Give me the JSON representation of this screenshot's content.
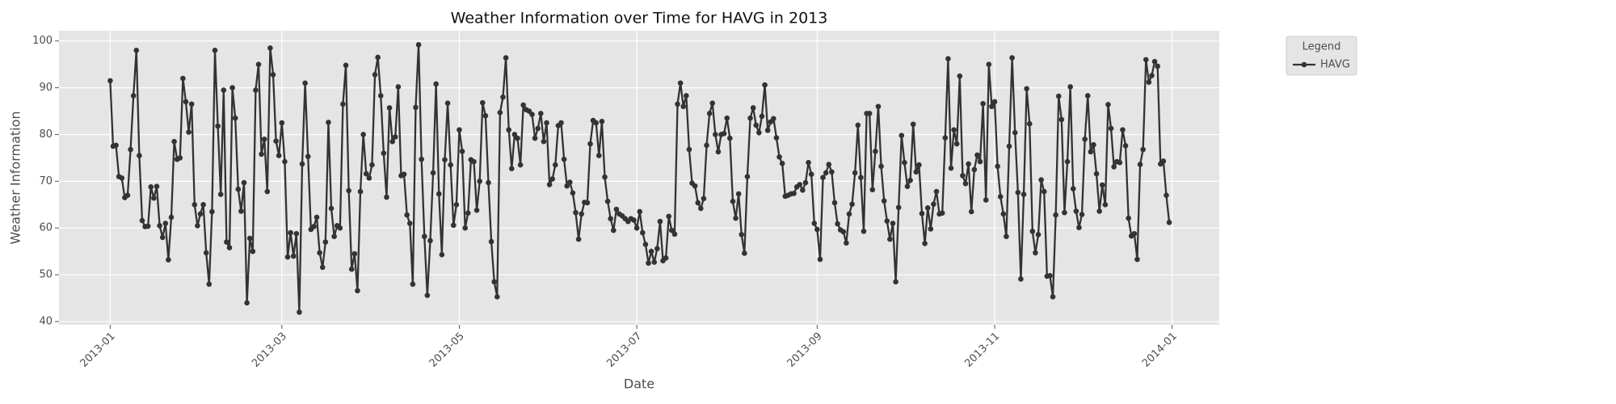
{
  "chart_data": {
    "type": "line",
    "title": "Weather Information over Time for HAVG in 2013",
    "xlabel": "Date",
    "ylabel": "Weather Information",
    "series": [
      {
        "name": "HAVG",
        "color": "#333333",
        "values": [
          91.5,
          77.5,
          77.7,
          71,
          70.7,
          66.5,
          67,
          76.8,
          88.3,
          98,
          75.5,
          61.6,
          60.3,
          60.4,
          68.8,
          66.4,
          68.9,
          60.5,
          58,
          61,
          53.2,
          62.3,
          78.5,
          74.7,
          75,
          92,
          87,
          80.5,
          86.5,
          65,
          60.5,
          63,
          65,
          54.7,
          48,
          63.5,
          98,
          81.8,
          67.2,
          89.5,
          57,
          55.8,
          90,
          83.5,
          68.3,
          63.6,
          69.7,
          44,
          57.8,
          55,
          89.5,
          95,
          75.8,
          79,
          67.8,
          98.5,
          92.8,
          78.6,
          75.5,
          82.5,
          74.2,
          53.8,
          59,
          54,
          58.8,
          42,
          73.7,
          91,
          75.3,
          59.7,
          60.3,
          62.3,
          54.7,
          51.6,
          57,
          82.6,
          64.2,
          58.2,
          60.5,
          60,
          86.5,
          94.8,
          68,
          51.2,
          54.5,
          46.6,
          67.8,
          80,
          71.6,
          70.7,
          73.5,
          92.8,
          96.5,
          88.3,
          76,
          66.6,
          85.7,
          78.5,
          79.5,
          90.2,
          71.2,
          71.5,
          62.8,
          61,
          48,
          85.8,
          99.2,
          74.7,
          58.2,
          45.6,
          57.3,
          71.8,
          90.8,
          67.3,
          54.3,
          74.6,
          86.7,
          73.5,
          60.6,
          65,
          81,
          76.4,
          60,
          63.2,
          74.6,
          74.2,
          63.8,
          70,
          86.8,
          84,
          69.7,
          57.1,
          48.5,
          45.3,
          84.7,
          88,
          96.4,
          81,
          72.7,
          80,
          79.2,
          73.5,
          86.3,
          85.3,
          85,
          84.3,
          79.2,
          81.3,
          84.5,
          78.5,
          82.5,
          69.3,
          70.5,
          73.5,
          81.9,
          82.5,
          74.7,
          69,
          69.8,
          67.5,
          63.3,
          57.6,
          63,
          65.5,
          65.4,
          78,
          83,
          82.5,
          75.5,
          82.8,
          70.9,
          65.7,
          62,
          59.5,
          64,
          63,
          62.6,
          62,
          61.4,
          62,
          61.7,
          60,
          63.5,
          59,
          56.5,
          52.5,
          55,
          52.7,
          55.6,
          61.4,
          53,
          53.6,
          62.5,
          59.5,
          58.7,
          86.5,
          91,
          86,
          88.3,
          76.8,
          69.6,
          69,
          65.4,
          64.2,
          66.3,
          77.7,
          84.5,
          86.7,
          80,
          76.3,
          80,
          80.2,
          83.5,
          79.2,
          65.7,
          62.1,
          67.3,
          58.6,
          54.6,
          71,
          83.5,
          85.7,
          82,
          80.4,
          83.9,
          90.6,
          80.9,
          82.7,
          83.4,
          79.3,
          75.2,
          73.8,
          66.8,
          67,
          67.3,
          67.4,
          68.8,
          69.3,
          68.1,
          69.7,
          74,
          71.5,
          61,
          59.7,
          53.3,
          70.8,
          71.8,
          73.6,
          72,
          65.4,
          60.9,
          59.6,
          59.2,
          56.8,
          63,
          65.1,
          71.8,
          82,
          70.8,
          59.3,
          84.5,
          84.5,
          68.2,
          76.4,
          86,
          73.2,
          65.8,
          61.5,
          57.6,
          61,
          48.5,
          64.4,
          79.8,
          74,
          68.9,
          70.2,
          82.2,
          72,
          73.5,
          63.1,
          56.7,
          64.3,
          59.8,
          65.1,
          67.8,
          63,
          63.2,
          79.3,
          96.2,
          72.8,
          81,
          78,
          92.5,
          71.2,
          69.5,
          73.7,
          63.5,
          72.5,
          75.6,
          74.2,
          86.6,
          66,
          95,
          86,
          87,
          73.2,
          66.7,
          63,
          58.2,
          77.5,
          96.4,
          80.4,
          67.6,
          49.1,
          67.2,
          89.8,
          82.3,
          59.3,
          54.7,
          58.6,
          70.3,
          67.8,
          49.7,
          49.8,
          45.3,
          62.8,
          88.2,
          83.2,
          63.3,
          74.2,
          90.2,
          68.4,
          63.6,
          60.1,
          62.9,
          79,
          88.3,
          76.3,
          77.8,
          71.6,
          63.6,
          69.2,
          65,
          86.4,
          81.3,
          73.1,
          74.2,
          74,
          81,
          77.6,
          62.1,
          58.3,
          58.8,
          53.3,
          73.6,
          76.8,
          96,
          91.2,
          92.6,
          95.6,
          94.6,
          73.7,
          74.3,
          67,
          61.2
        ]
      }
    ],
    "xlim": [
      -17.6,
      381.2
    ],
    "xticks": [
      {
        "value": 0,
        "label": "2013-01"
      },
      {
        "value": 59,
        "label": "2013-03"
      },
      {
        "value": 120,
        "label": "2013-05"
      },
      {
        "value": 181,
        "label": "2013-07"
      },
      {
        "value": 243,
        "label": "2013-09"
      },
      {
        "value": 304,
        "label": "2013-11"
      },
      {
        "value": 365,
        "label": "2014-01"
      }
    ],
    "ylim": [
      39.3,
      102.2
    ],
    "yticks": [
      40,
      50,
      60,
      70,
      80,
      90,
      100
    ],
    "grid": true,
    "legend": "outside upper right",
    "legend_title": "Legend"
  }
}
